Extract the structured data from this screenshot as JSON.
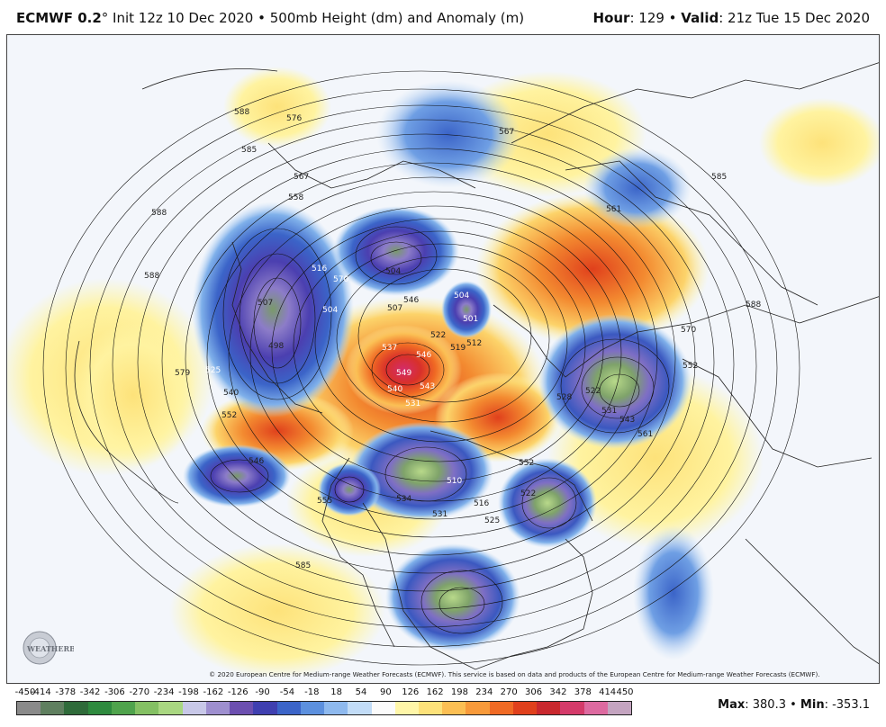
{
  "header": {
    "model": "ECMWF 0.2",
    "init_text": "° Init 12z 10 Dec 2020 • 500mb Height (dm) and Anomaly (m)",
    "hour_label": "Hour",
    "hour_value": ": 129 • ",
    "valid_label": "Valid",
    "valid_value": ": 21z Tue 15 Dec 2020"
  },
  "map": {
    "contour_labels": [
      "588",
      "585",
      "576",
      "567",
      "558",
      "588",
      "588",
      "579",
      "516",
      "570",
      "504",
      "507",
      "504",
      "498",
      "507",
      "525",
      "540",
      "552",
      "546",
      "537",
      "546",
      "549",
      "543",
      "540",
      "522",
      "519",
      "531",
      "501",
      "512",
      "504",
      "528",
      "522",
      "531",
      "543",
      "561",
      "552",
      "570",
      "555",
      "546",
      "552",
      "585",
      "534",
      "510",
      "531",
      "525",
      "516",
      "522",
      "567",
      "561",
      "585",
      "588"
    ],
    "colors": {
      "ocean": "#f3f6fb",
      "land_line": "#222222",
      "contour": "#111111"
    }
  },
  "copyright": "© 2020 European Centre for Medium-range Weather Forecasts (ECMWF). This service is based on data and products of the European Centre for Medium-range Weather Forecasts (ECMWF).",
  "logo_text": "WEATHERBELL",
  "colorbar": {
    "labels": [
      "-450",
      "-414",
      "-378",
      "-342",
      "-306",
      "-270",
      "-234",
      "-198",
      "-162",
      "-126",
      "-90",
      "-54",
      "-18",
      "18",
      "54",
      "90",
      "126",
      "162",
      "198",
      "234",
      "270",
      "306",
      "342",
      "378",
      "414",
      "450"
    ],
    "colors": [
      "#8a8a8a",
      "#5f7f5f",
      "#2f6b3a",
      "#2e8a3e",
      "#4fa34c",
      "#84c063",
      "#a9d781",
      "#c8c8e8",
      "#9e8fcf",
      "#6c4fb0",
      "#3f3fb0",
      "#3b64c8",
      "#5c90de",
      "#8eb9ee",
      "#c2dcf7",
      "#fbfbfb",
      "#fff6a8",
      "#fde27a",
      "#fcbf53",
      "#f89a3a",
      "#f06a24",
      "#e0401c",
      "#c9282e",
      "#d43a6a",
      "#dd6aa0",
      "#c4a4c0"
    ]
  },
  "maxmin": {
    "max_label": "Max",
    "max_value": ": 380.3 • ",
    "min_label": "Min",
    "min_value": ": -353.1"
  }
}
